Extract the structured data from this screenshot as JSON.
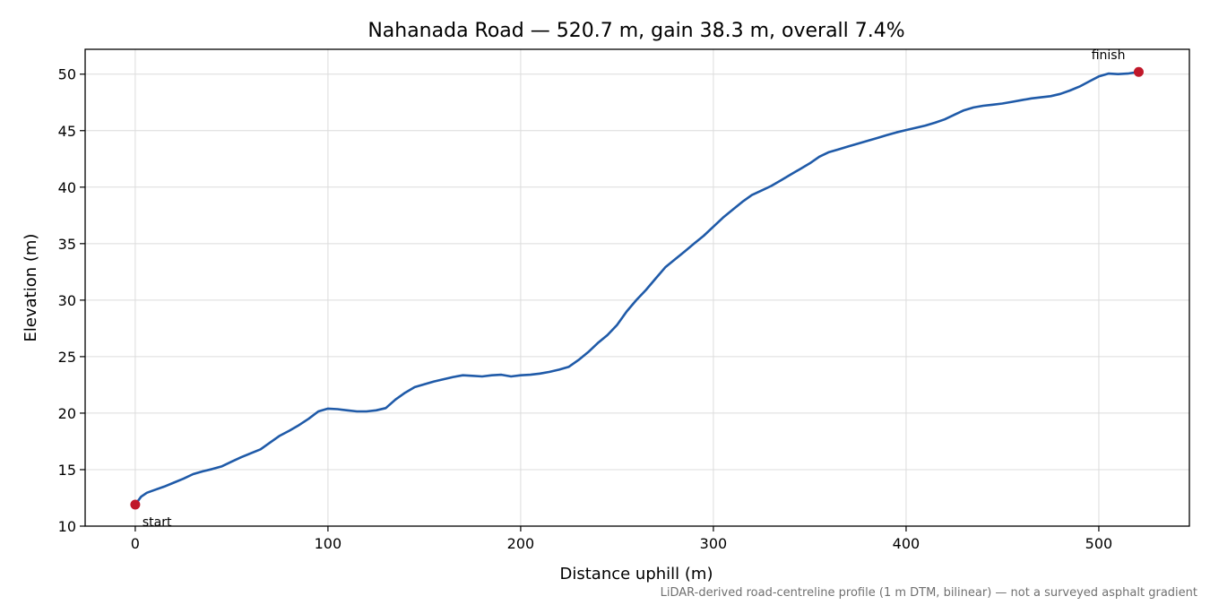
{
  "chart_data": {
    "type": "line",
    "title": "Nahanada Road — 520.7 m, gain 38.3 m, overall 7.4%",
    "xlabel": "Distance uphill (m)",
    "ylabel": "Elevation (m)",
    "xlim": [
      -26,
      547
    ],
    "ylim": [
      10,
      52.2
    ],
    "xticks": [
      0,
      100,
      200,
      300,
      400,
      500
    ],
    "yticks": [
      10,
      15,
      20,
      25,
      30,
      35,
      40,
      45,
      50
    ],
    "grid": true,
    "series": [
      {
        "color": "#1f5aa8",
        "x": [
          0,
          3,
          6,
          10,
          15,
          20,
          25,
          30,
          35,
          40,
          45,
          50,
          55,
          60,
          65,
          70,
          75,
          80,
          85,
          90,
          95,
          100,
          105,
          110,
          115,
          120,
          125,
          130,
          135,
          140,
          145,
          150,
          155,
          160,
          165,
          170,
          175,
          180,
          185,
          190,
          195,
          200,
          205,
          210,
          215,
          220,
          225,
          230,
          235,
          240,
          245,
          250,
          255,
          260,
          265,
          270,
          275,
          280,
          285,
          290,
          295,
          300,
          305,
          310,
          315,
          320,
          325,
          330,
          335,
          340,
          345,
          350,
          355,
          360,
          365,
          370,
          375,
          380,
          385,
          390,
          395,
          400,
          405,
          410,
          415,
          420,
          425,
          430,
          435,
          440,
          445,
          450,
          455,
          460,
          465,
          470,
          475,
          480,
          485,
          490,
          495,
          500,
          505,
          510,
          515,
          520.7
        ],
        "y": [
          11.9,
          12.6,
          12.95,
          13.2,
          13.5,
          13.85,
          14.2,
          14.6,
          14.85,
          15.05,
          15.3,
          15.7,
          16.1,
          16.45,
          16.8,
          17.4,
          18.0,
          18.45,
          18.95,
          19.5,
          20.15,
          20.4,
          20.35,
          20.25,
          20.15,
          20.15,
          20.25,
          20.45,
          21.2,
          21.8,
          22.3,
          22.55,
          22.8,
          23.0,
          23.2,
          23.35,
          23.3,
          23.25,
          23.35,
          23.4,
          23.25,
          23.35,
          23.4,
          23.5,
          23.65,
          23.85,
          24.1,
          24.7,
          25.4,
          26.2,
          26.9,
          27.8,
          29.0,
          30.0,
          30.9,
          31.9,
          32.9,
          33.6,
          34.3,
          35.0,
          35.7,
          36.5,
          37.3,
          38.0,
          38.7,
          39.3,
          39.7,
          40.1,
          40.6,
          41.1,
          41.6,
          42.1,
          42.7,
          43.1,
          43.35,
          43.6,
          43.85,
          44.1,
          44.35,
          44.6,
          44.85,
          45.05,
          45.25,
          45.45,
          45.7,
          46.0,
          46.4,
          46.8,
          47.05,
          47.2,
          47.3,
          47.4,
          47.55,
          47.7,
          47.85,
          47.95,
          48.05,
          48.25,
          48.55,
          48.9,
          49.35,
          49.8,
          50.05,
          50.0,
          50.05,
          50.2
        ]
      }
    ],
    "endpoints": [
      {
        "label": "start",
        "x": 0,
        "y": 11.9,
        "color": "#c0182a"
      },
      {
        "label": "finish",
        "x": 520.7,
        "y": 50.2,
        "color": "#c0182a"
      }
    ],
    "footnote": "LiDAR-derived road-centreline profile (1 m DTM, bilinear) — not a surveyed asphalt gradient"
  }
}
